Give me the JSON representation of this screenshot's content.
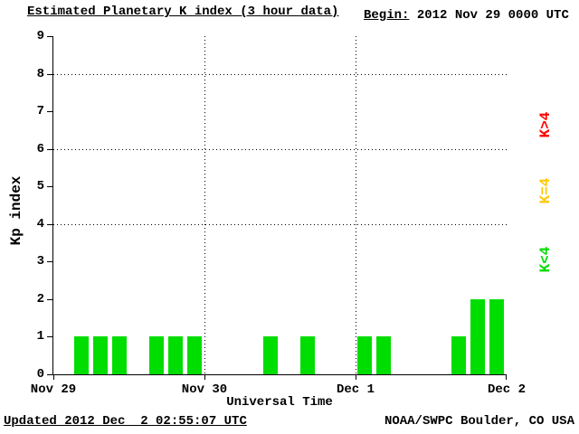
{
  "title": "Estimated Planetary K index (3 hour data)",
  "begin": {
    "label": "Begin:",
    "value": " 2012 Nov 29 0000 UTC"
  },
  "footer": {
    "updated": "Updated 2012 Dec  2 02:55:07 UTC",
    "source": "NOAA/SWPC Boulder, CO USA"
  },
  "colors": {
    "background": "#FFFFFF",
    "axis": "#000000",
    "green": "#00DD00",
    "yellow": "#FFC800",
    "red": "#FF0000"
  },
  "legend": [
    {
      "label": "K>4",
      "color": "#FF0000"
    },
    {
      "label": "K=4",
      "color": "#FFC800"
    },
    {
      "label": "K<4",
      "color": "#00DD00"
    }
  ],
  "chart_data": {
    "type": "bar",
    "title": "Estimated Planetary K index (3 hour data)",
    "xlabel": "Universal Time",
    "ylabel": "Kp index",
    "ylim": [
      0,
      9
    ],
    "yticks": [
      0,
      1,
      2,
      3,
      4,
      5,
      6,
      7,
      8,
      9
    ],
    "bin_hours": 3,
    "start": "2012 Nov 29 0000 UTC",
    "x_tick_labels": [
      "Nov 29",
      "Nov 30",
      "Dec 1",
      "Dec 2"
    ],
    "x_ticks_at_bins": [
      0,
      8,
      16,
      24
    ],
    "v_gridlines_at_bins": [
      8,
      16
    ],
    "h_gridlines": [
      4,
      6,
      8
    ],
    "color_rule": "K<4 green, K=4 yellow, K>4 red",
    "legend_position": "right",
    "values": [
      0,
      1,
      1,
      1,
      0,
      1,
      1,
      1,
      0,
      0,
      0,
      1,
      0,
      1,
      0,
      0,
      1,
      1,
      0,
      0,
      0,
      1,
      2,
      2
    ]
  }
}
